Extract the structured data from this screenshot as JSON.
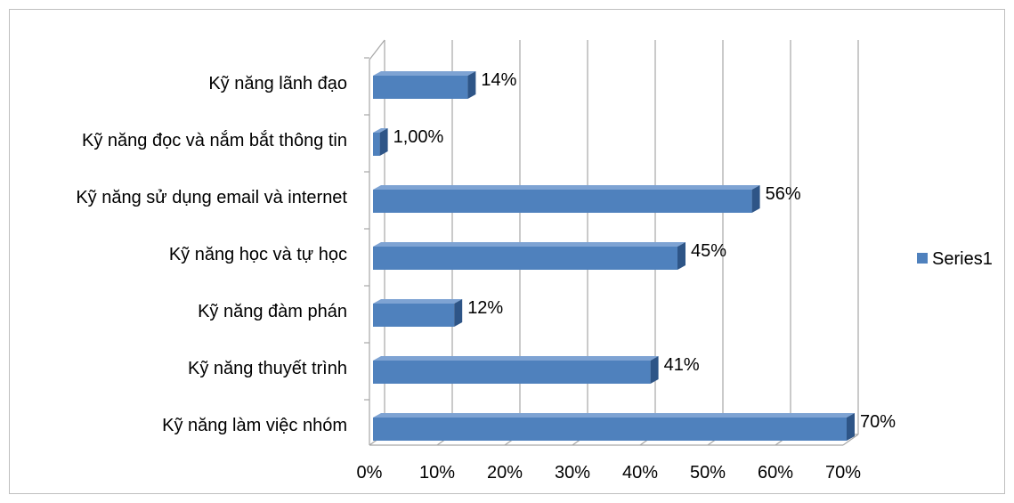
{
  "chart_data": {
    "type": "bar",
    "orientation": "horizontal",
    "style": "3d",
    "categories": [
      "Kỹ năng lãnh đạo",
      "Kỹ năng đọc và nắm bắt thông tin",
      "Kỹ năng sử dụng email và internet",
      "Kỹ năng học và tự học",
      "Kỹ năng đàm phán",
      "Kỹ năng thuyết trình",
      "Kỹ năng làm việc nhóm"
    ],
    "series": [
      {
        "name": "Series1",
        "values": [
          14,
          1,
          56,
          45,
          12,
          41,
          70
        ],
        "data_labels": [
          "14%",
          "1,00%",
          "56%",
          "45%",
          "12%",
          "41%",
          "70%"
        ]
      }
    ],
    "xlim": [
      0,
      70
    ],
    "x_ticks": [
      0,
      10,
      20,
      30,
      40,
      50,
      60,
      70
    ],
    "x_tick_labels": [
      "0%",
      "10%",
      "20%",
      "30%",
      "40%",
      "50%",
      "60%",
      "70%"
    ],
    "grid": "vertical",
    "legend_position": "right",
    "title": "",
    "xlabel": "",
    "ylabel": ""
  },
  "colors": {
    "bar_front": "#4F81BD",
    "bar_top": "#7EA3D3",
    "bar_side": "#2E5587",
    "grid": "#A6A6A6",
    "frame": "#BFBFBF"
  }
}
